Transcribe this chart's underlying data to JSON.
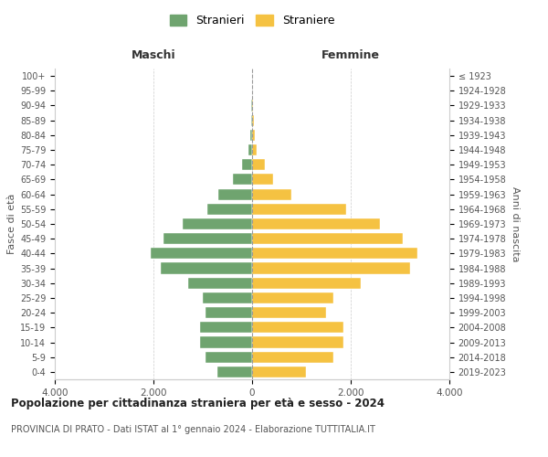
{
  "age_groups": [
    "0-4",
    "5-9",
    "10-14",
    "15-19",
    "20-24",
    "25-29",
    "30-34",
    "35-39",
    "40-44",
    "45-49",
    "50-54",
    "55-59",
    "60-64",
    "65-69",
    "70-74",
    "75-79",
    "80-84",
    "85-89",
    "90-94",
    "95-99",
    "100+"
  ],
  "birth_years": [
    "2019-2023",
    "2014-2018",
    "2009-2013",
    "2004-2008",
    "1999-2003",
    "1994-1998",
    "1989-1993",
    "1984-1988",
    "1979-1983",
    "1974-1978",
    "1969-1973",
    "1964-1968",
    "1959-1963",
    "1954-1958",
    "1949-1953",
    "1944-1948",
    "1939-1943",
    "1934-1938",
    "1929-1933",
    "1924-1928",
    "≤ 1923"
  ],
  "maschi": [
    700,
    950,
    1050,
    1050,
    950,
    1000,
    1300,
    1850,
    2050,
    1800,
    1400,
    900,
    680,
    380,
    200,
    80,
    40,
    20,
    10,
    5,
    5
  ],
  "femmine": [
    1100,
    1650,
    1850,
    1850,
    1500,
    1650,
    2200,
    3200,
    3350,
    3050,
    2600,
    1900,
    800,
    430,
    250,
    100,
    50,
    30,
    15,
    5,
    5
  ],
  "male_color": "#6fa46f",
  "female_color": "#f5c242",
  "background_color": "#ffffff",
  "grid_color": "#cccccc",
  "title": "Popolazione per cittadinanza straniera per età e sesso - 2024",
  "subtitle": "PROVINCIA DI PRATO - Dati ISTAT al 1° gennaio 2024 - Elaborazione TUTTITALIA.IT",
  "xlabel_left": "Maschi",
  "xlabel_right": "Femmine",
  "ylabel_left": "Fasce di età",
  "ylabel_right": "Anni di nascita",
  "legend_male": "Stranieri",
  "legend_female": "Straniere",
  "xlim": 4000,
  "xticks": [
    -4000,
    -2000,
    0,
    2000,
    4000
  ],
  "xticklabels": [
    "4.000",
    "2.000",
    "0",
    "2.000",
    "4.000"
  ]
}
